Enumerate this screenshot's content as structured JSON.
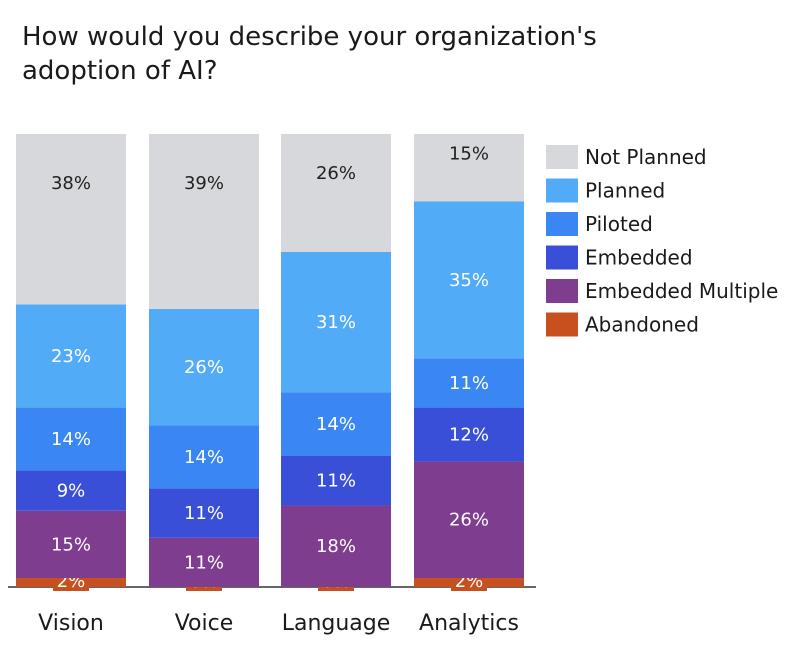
{
  "chart_data": {
    "type": "bar",
    "stacked": true,
    "title": "How would you describe your organization's adoption of AI?",
    "xlabel": "",
    "ylabel": "",
    "ylim": [
      0,
      100
    ],
    "grid": false,
    "legend_position": "right",
    "categories": [
      "Vision",
      "Voice",
      "Language",
      "Analytics"
    ],
    "series": [
      {
        "name": "Abandoned",
        "color": "#c8501e",
        "values": [
          2,
          0,
          0,
          2
        ],
        "labels": [
          "2%",
          "0%",
          "0%",
          "2%"
        ]
      },
      {
        "name": "Embedded Multiple",
        "color": "#7e3d8f",
        "values": [
          15,
          11,
          18,
          26
        ],
        "labels": [
          "15%",
          "11%",
          "18%",
          "26%"
        ]
      },
      {
        "name": "Embedded",
        "color": "#3a4fd8",
        "values": [
          9,
          11,
          11,
          12
        ],
        "labels": [
          "9%",
          "11%",
          "11%",
          "12%"
        ]
      },
      {
        "name": "Piloted",
        "color": "#3a86f2",
        "values": [
          14,
          14,
          14,
          11
        ],
        "labels": [
          "14%",
          "14%",
          "14%",
          "11%"
        ]
      },
      {
        "name": "Planned",
        "color": "#52abf7",
        "values": [
          23,
          26,
          31,
          35
        ],
        "labels": [
          "23%",
          "26%",
          "31%",
          "35%"
        ]
      },
      {
        "name": "Not Planned",
        "color": "#d7d8dc",
        "values": [
          38,
          39,
          26,
          15
        ],
        "labels": [
          "38%",
          "39%",
          "26%",
          "15%"
        ]
      }
    ],
    "legend_order": [
      "Not Planned",
      "Planned",
      "Piloted",
      "Embedded",
      "Embedded Multiple",
      "Abandoned"
    ]
  }
}
